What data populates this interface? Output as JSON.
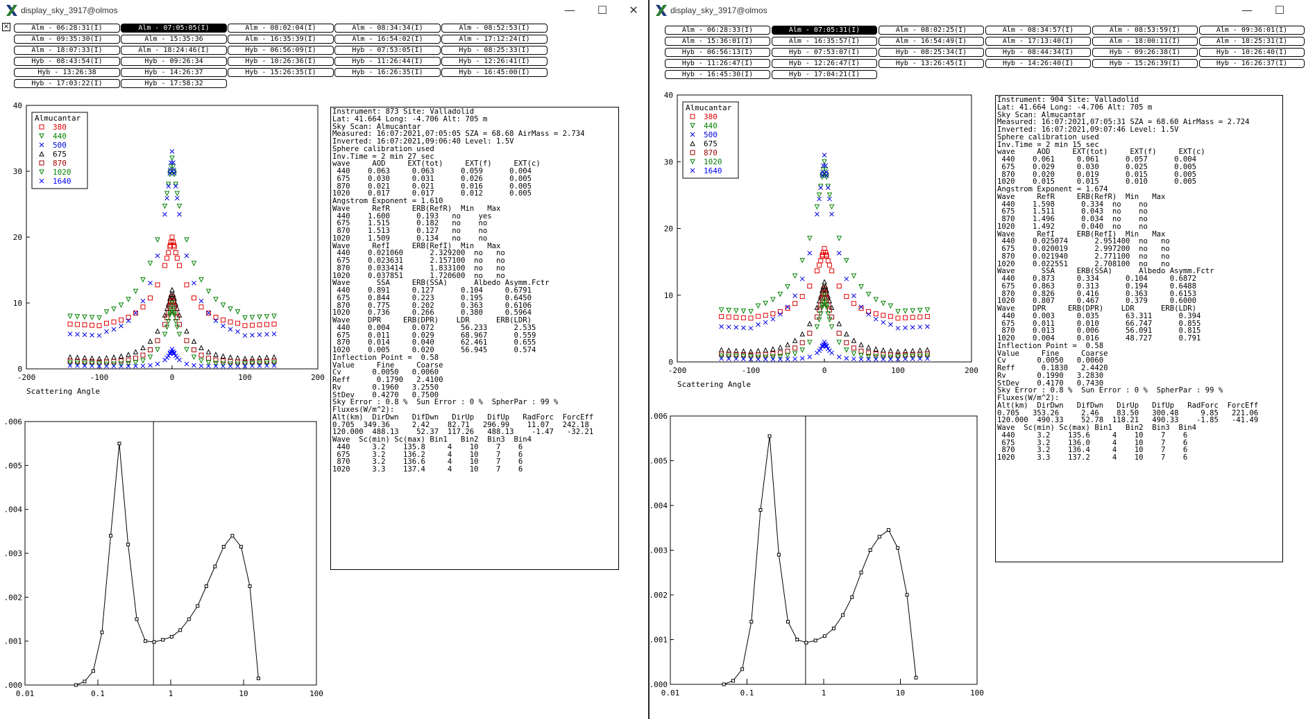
{
  "windows": [
    {
      "title": "display_sky_3917@olmos",
      "tabs": [
        [
          "Alm - 06:28:31(I)",
          "Alm - 07:05:05(I)",
          "Alm - 08:02:04(I)",
          "Alm - 08:34:34(I)",
          "Alm - 08:52:53(I)"
        ],
        [
          "Alm - 09:35:30(I)",
          "Alm - 15:35:36",
          "Alm - 16:35:39(I)",
          "Alm - 16:54:02(I)",
          "Alm - 17:12:24(I)"
        ],
        [
          "Alm - 18:07:33(I)",
          "Alm - 18:24:46(I)",
          "Hyb - 06:56:09(I)",
          "Hyb - 07:53:05(I)",
          "Hyb - 08:25:33(I)"
        ],
        [
          "Hyb - 08:43:54(I)",
          "Hyb - 09:26:34",
          "Hyb - 10:26:36(I)",
          "Hyb - 11:26:44(I)",
          "Hyb - 12:26:41(I)"
        ],
        [
          "Hyb - 13:26:38",
          "Hyb - 14:26:37",
          "Hyb - 15:26:35(I)",
          "Hyb - 16:26:35(I)",
          "Hyb - 16:45:00(I)"
        ],
        [
          "Hyb - 17:03:22(I)",
          "Hyb - 17:58:32"
        ]
      ],
      "selected_tab": "Alm - 07:05:05(I)",
      "info": "Instrument: 873 Site: Valladolid\nLat: 41.664 Long: -4.706 Alt: 705 m\nSky Scan: Almucantar\nMeasured: 16:07:2021,07:05:05 SZA = 68.68 AirMass = 2.734\nInverted: 16:07:2021,09:06:40 Level: 1.5V\nSphere calibration used\nInv.Time = 2 min 27 sec\nwave     AOD     EXT(tot)     EXT(f)     EXT(c)\n 440    0.063     0.063      0.059      0.004\n 675    0.030     0.031      0.026      0.005\n 870    0.021     0.021      0.016      0.005\n1020    0.017     0.017      0.012      0.005\nAngstrom Exponent = 1.610\nWave     RefR     ERB(RefR)  Min   Max\n 440    1.600      0.193   no    yes\n 675    1.515      0.182   no    no\n 870    1.513      0.127   no    no\n1020    1.509      0.134   no    no\nWave     RefI     ERB(RefI)  Min   Max\n 440    0.021060      2.329200  no   no\n 675    0.023631      2.157100  no   no\n 870    0.033414      1.833100  no   no\n1020    0.037851      1.720600  no   no\nWave      SSA     ERB(SSA)      Albedo Asymm.Fctr\n 440    0.891     0.127      0.104     0.6791\n 675    0.844     0.223      0.195     0.6450\n 870    0.775     0.202      0.363     0.6106\n1020    0.736     0.266      0.380     0.5964\nWave    DPR     ERB(DPR)    LDR      ERB(LDR)\n 440    0.004     0.072      56.233      2.535\n 675    0.011     0.029      68.967      0.559\n 870    0.014     0.040      62.461      0.655\n1020    0.005     0.020      56.945      0.574\nInflection Point =  0.58\nValue     Fine     Coarse\nCv       0.0050   0.0060\nReff      0.1790   2.4100\nRv       0.1960   3.2550\nStDev    0.4270   0.7500\nSky Error : 0.8 %  Sun Error : 0 %  SpherPar : 99 %\nFluxes(W/m^2):\nAlt(km)  DirDwn   DifDwn   DirUp   DifUp   RadForc  ForcEff\n0.705  349.36     2.42    82.71   296.99    11.07   242.18\n120.000  488.13    52.37  117.26   488.13    -1.47   -32.21\nWave  Sc(min) Sc(max) Bin1   Bin2  Bin3  Bin4\n 440     3.2    135.8     4    10    7    6\n 675     3.2    136.2     4    10    7    6\n 870     3.2    136.6     4    10    7    6\n1020     3.3    137.4     4    10    7    6"
    },
    {
      "title": "display_sky_3917@olmos",
      "tabs": [
        [
          "Alm - 06:28:33(I)",
          "Alm - 07:05:31(I)",
          "Alm - 08:02:25(I)",
          "Alm - 08:34:57(I)",
          "Alm - 08:53:59(I)",
          "Alm - 09:36:01(I)"
        ],
        [
          "Alm - 15:36:01(I)",
          "Alm - 16:35:57(I)",
          "Alm - 16:54:49(I)",
          "Alm - 17:13:40(I)",
          "Alm - 18:00:11(I)",
          "Alm - 18:25:31(I)"
        ],
        [
          "Hyb - 06:56:13(I)",
          "Hyb - 07:53:07(I)",
          "Hyb - 08:25:34(I)",
          "Hyb - 08:44:34(I)",
          "Hyb - 09:26:38(I)",
          "Hyb - 10:26:40(I)"
        ],
        [
          "Hyb - 11:26:47(I)",
          "Hyb - 12:26:47(I)",
          "Hyb - 13:26:45(I)",
          "Hyb - 14:26:40(I)",
          "Hyb - 15:26:39(I)",
          "Hyb - 16:26:37(I)"
        ],
        [
          "Hyb - 16:45:30(I)",
          "Hyb - 17:04:21(I)"
        ]
      ],
      "selected_tab": "Alm - 07:05:31(I)",
      "info": "Instrument: 904 Site: Valladolid\nLat: 41.664 Long: -4.706 Alt: 705 m\nSky Scan: Almucantar\nMeasured: 16:07:2021,07:05:31 SZA = 68.60 AirMass = 2.724\nInverted: 16:07:2021,09:07:46 Level: 1.5V\nSphere calibration used\nInv.Time = 2 min 15 sec\nwave     AOD     EXT(tot)     EXT(f)     EXT(c)\n 440    0.061     0.061      0.057      0.004\n 675    0.029     0.030      0.025      0.005\n 870    0.020     0.019      0.015      0.005\n1020    0.015     0.015      0.010      0.005\nAngstrom Exponent = 1.674\nWave     RefR     ERB(RefR)  Min   Max\n 440    1.598      0.334  no    no\n 675    1.511      0.043  no    no\n 870    1.496      0.034  no    no\n1020    1.492      0.040  no    no\nWave     RefI     ERB(RefI)  Min   Max\n 440    0.025074      2.951400  no   no\n 675    0.020019      2.997200  no   no\n 870    0.021940      2.771100  no   no\n1020    0.022551      2.708100  no   no\nWave      SSA     ERB(SSA)      Albedo Asymm.Fctr\n 440    0.873     0.334      0.104     0.6872\n 675    0.863     0.313      0.194     0.6488\n 870    0.826     0.416      0.363     0.6153\n1020    0.807     0.467      0.379     0.6000\nWave    DPR     ERB(DPR)    LDR      ERB(LDR)\n 440    0.003     0.035      63.311      0.394\n 675    0.011     0.010      66.747      0.855\n 870    0.013     0.006      56.091      0.815\n1020    0.004     0.016      48.727      0.791\nInflection Point =  0.58\nValue     Fine     Coarse\nCv       0.0050   0.0060\nReff      0.1830   2.4420\nRv       0.1990   3.2830\nStDev    0.4170   0.7430\nSky Error : 0.8 %  Sun Error : 0 %  SpherPar : 99 %\nFluxes(W/m^2):\nAlt(km)  DirDwn   DifDwn   DirUp   DifUp   RadForc  ForcEff\n0.705   353.26     2.46    83.50   300.48     9.85   221.06\n120.000  490.33    52.78  118.21   490.33    -1.85   -41.49\nWave  Sc(min) Sc(max) Bin1   Bin2  Bin3  Bin4\n 440     3.2    135.6     4    10    7    6\n 675     3.2    136.0     4    10    7    6\n 870     3.2    136.4     4    10    7    6\n1020     3.3    137.2     4    10    7    6"
    }
  ],
  "colors": {
    "380": "#e00000",
    "440": "#008000",
    "500": "#0000e0",
    "675": "#000000",
    "870": "#a00000",
    "1020": "#008000",
    "1640": "#0000ff"
  },
  "chart_data": [
    {
      "type": "scatter",
      "title": "",
      "xlabel": "Scattering Angle",
      "ylabel": "",
      "xlim": [
        -200,
        200
      ],
      "ylim": [
        0,
        40
      ],
      "xticks": [
        -200,
        -100,
        0,
        100,
        200
      ],
      "yticks": [
        0,
        10,
        20,
        30,
        40
      ],
      "legend_title": "Almucantar",
      "series": [
        {
          "name": "380",
          "marker": "square",
          "peak": 20,
          "wing": 6.5,
          "tail": 6.8,
          "width": 26
        },
        {
          "name": "440",
          "marker": "tri-down",
          "peak": 32,
          "wing": 7.7,
          "tail": 8,
          "width": 28
        },
        {
          "name": "500",
          "marker": "x",
          "peak": 33,
          "wing": 5,
          "tail": 5.3,
          "width": 24
        },
        {
          "name": "675",
          "marker": "tri-up",
          "peak": 12,
          "wing": 1.5,
          "tail": 1.8,
          "width": 22
        },
        {
          "name": "870",
          "marker": "square",
          "peak": 11,
          "wing": 1,
          "tail": 1.2,
          "width": 18
        },
        {
          "name": "1020",
          "marker": "tri-down",
          "peak": 10,
          "wing": 0.7,
          "tail": 0.9,
          "width": 14
        },
        {
          "name": "1640",
          "marker": "x",
          "peak": 3,
          "wing": 0.4,
          "tail": 0.5,
          "width": 10
        }
      ]
    },
    {
      "type": "line",
      "title": "",
      "xlabel": "",
      "ylabel": "",
      "x_scale": "log",
      "xlim": [
        0.01,
        100
      ],
      "ylim": [
        0,
        0.006
      ],
      "xticks": [
        "0.01",
        "0.1",
        "1",
        "10",
        "100"
      ],
      "yticks": [
        ".000",
        ".001",
        ".002",
        ".003",
        ".004",
        ".005",
        ".006"
      ],
      "inflection_point": 0.58,
      "x": [
        0.05,
        0.0658,
        0.0866,
        0.114,
        0.15,
        0.197,
        0.26,
        0.342,
        0.45,
        0.592,
        0.78,
        1.03,
        1.35,
        1.78,
        2.34,
        3.08,
        4.05,
        5.33,
        7.02,
        9.24,
        12.2,
        16.0
      ],
      "values": [
        0.0,
        8e-05,
        0.00032,
        0.0012,
        0.0034,
        0.0055,
        0.0032,
        0.0015,
        0.001,
        0.00098,
        0.00103,
        0.0011,
        0.00125,
        0.0015,
        0.0018,
        0.00225,
        0.0027,
        0.00315,
        0.0034,
        0.00315,
        0.00225,
        0.00015
      ]
    },
    {
      "type": "scatter",
      "title": "",
      "xlabel": "Scattering Angle",
      "ylabel": "",
      "xlim": [
        -200,
        200
      ],
      "ylim": [
        0,
        40
      ],
      "xticks": [
        -200,
        -100,
        0,
        100,
        200
      ],
      "yticks": [
        0,
        10,
        20,
        30,
        40
      ],
      "legend_title": "Almucantar",
      "series": [
        {
          "name": "380",
          "marker": "square",
          "peak": 17,
          "wing": 6.5,
          "tail": 6.8,
          "width": 26
        },
        {
          "name": "440",
          "marker": "tri-down",
          "peak": 30,
          "wing": 7.5,
          "tail": 7.8,
          "width": 28
        },
        {
          "name": "500",
          "marker": "x",
          "peak": 31,
          "wing": 5,
          "tail": 5.3,
          "width": 24
        },
        {
          "name": "675",
          "marker": "tri-up",
          "peak": 12,
          "wing": 1.5,
          "tail": 1.8,
          "width": 22
        },
        {
          "name": "870",
          "marker": "square",
          "peak": 11,
          "wing": 1,
          "tail": 1.2,
          "width": 18
        },
        {
          "name": "1020",
          "marker": "tri-down",
          "peak": 10,
          "wing": 0.7,
          "tail": 0.9,
          "width": 14
        },
        {
          "name": "1640",
          "marker": "x",
          "peak": 3,
          "wing": 0.4,
          "tail": 0.5,
          "width": 10
        }
      ]
    },
    {
      "type": "line",
      "title": "",
      "xlabel": "",
      "ylabel": "",
      "x_scale": "log",
      "xlim": [
        0.01,
        100
      ],
      "ylim": [
        0,
        0.006
      ],
      "xticks": [
        "0.01",
        "0.1",
        "1",
        "10",
        "100"
      ],
      "yticks": [
        ".000",
        ".001",
        ".002",
        ".003",
        ".004",
        ".005",
        ".006"
      ],
      "inflection_point": 0.58,
      "x": [
        0.05,
        0.0658,
        0.0866,
        0.114,
        0.15,
        0.197,
        0.26,
        0.342,
        0.45,
        0.592,
        0.78,
        1.03,
        1.35,
        1.78,
        2.34,
        3.08,
        4.05,
        5.33,
        7.02,
        9.24,
        12.2,
        16.0
      ],
      "values": [
        0.0,
        8e-05,
        0.00034,
        0.0014,
        0.0039,
        0.00555,
        0.0029,
        0.0014,
        0.001,
        0.00093,
        0.00098,
        0.00108,
        0.00125,
        0.00155,
        0.00195,
        0.0025,
        0.003,
        0.0033,
        0.00345,
        0.00305,
        0.002,
        0.00015
      ]
    }
  ]
}
